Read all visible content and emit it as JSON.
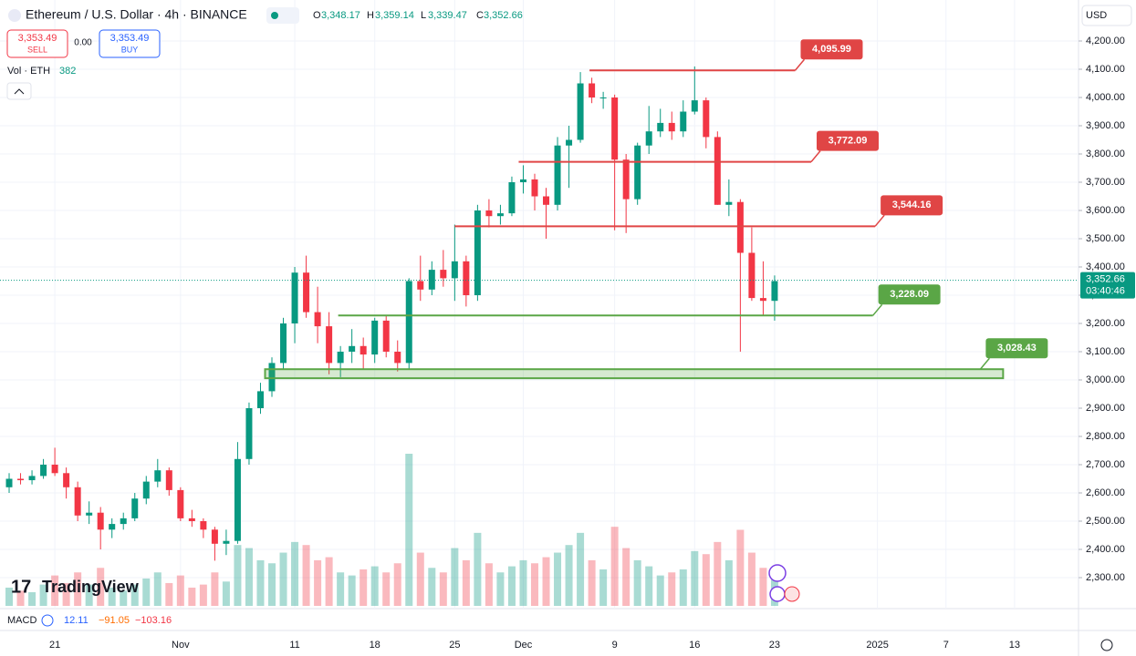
{
  "chart_data": {
    "type": "candlestick",
    "title": "Ethereum / U.S. Dollar · 4h · BINANCE",
    "ohlc_labels": [
      "O",
      "H",
      "L",
      "C"
    ],
    "ohlc_values": [
      "3,348.17",
      "3,359.14",
      "3,339.47",
      "3,352.66"
    ],
    "sell": {
      "price": "3,353.49",
      "label": "SELL"
    },
    "spread": "0.00",
    "buy": {
      "price": "3,353.49",
      "label": "BUY"
    },
    "volume_label": "Vol · ETH",
    "volume_value": "382",
    "macd_label": "MACD",
    "macd_values": [
      "12.11",
      "−91.05",
      "−103.16"
    ],
    "currency": "USD",
    "logo": "TradingView",
    "last_price": {
      "value": 3352.66,
      "label": "3,352.66",
      "countdown": "03:40:46"
    },
    "up_color": "#089981",
    "down_color": "#f23645",
    "xlim": [
      -0.8,
      93.6
    ],
    "xticks": [
      {
        "value": 4,
        "label": "21"
      },
      {
        "value": 15,
        "label": "Nov"
      },
      {
        "value": 25,
        "label": "11"
      },
      {
        "value": 32,
        "label": "18"
      },
      {
        "value": 39,
        "label": "25"
      },
      {
        "value": 45,
        "label": "Dec"
      },
      {
        "value": 53,
        "label": "9"
      },
      {
        "value": 60,
        "label": "16"
      },
      {
        "value": 67,
        "label": "23"
      },
      {
        "value": 76,
        "label": "2025"
      },
      {
        "value": 82,
        "label": "7"
      },
      {
        "value": 88,
        "label": "13"
      }
    ],
    "ylim": [
      2190.3,
      4345.2
    ],
    "yticks": [
      {
        "value": 4200,
        "label": "4,200.00"
      },
      {
        "value": 4100,
        "label": "4,100.00"
      },
      {
        "value": 4000,
        "label": "4,000.00"
      },
      {
        "value": 3900,
        "label": "3,900.00"
      },
      {
        "value": 3800,
        "label": "3,800.00"
      },
      {
        "value": 3700,
        "label": "3,700.00"
      },
      {
        "value": 3600,
        "label": "3,600.00"
      },
      {
        "value": 3500,
        "label": "3,500.00"
      },
      {
        "value": 3400,
        "label": "3,400.00"
      },
      {
        "value": 3300,
        "label": "3,300.00"
      },
      {
        "value": 3200,
        "label": "3,200.00"
      },
      {
        "value": 3100,
        "label": "3,100.00"
      },
      {
        "value": 3000,
        "label": "3,000.00"
      },
      {
        "value": 2900,
        "label": "2,900.00"
      },
      {
        "value": 2800,
        "label": "2,800.00"
      },
      {
        "value": 2700,
        "label": "2,700.00"
      },
      {
        "value": 2600,
        "label": "2,600.00"
      },
      {
        "value": 2500,
        "label": "2,500.00"
      },
      {
        "value": 2400,
        "label": "2,400.00"
      },
      {
        "value": 2300,
        "label": "2,300.00"
      }
    ],
    "grid": true,
    "ohlc": [
      [
        2620,
        2670,
        2600,
        2650
      ],
      [
        2650,
        2670,
        2630,
        2645
      ],
      [
        2645,
        2680,
        2630,
        2660
      ],
      [
        2660,
        2720,
        2650,
        2700
      ],
      [
        2700,
        2760,
        2660,
        2670
      ],
      [
        2670,
        2690,
        2580,
        2620
      ],
      [
        2620,
        2640,
        2500,
        2520
      ],
      [
        2520,
        2570,
        2490,
        2530
      ],
      [
        2530,
        2550,
        2400,
        2470
      ],
      [
        2470,
        2510,
        2440,
        2490
      ],
      [
        2490,
        2530,
        2470,
        2510
      ],
      [
        2510,
        2600,
        2500,
        2580
      ],
      [
        2580,
        2660,
        2560,
        2640
      ],
      [
        2640,
        2720,
        2620,
        2680
      ],
      [
        2680,
        2690,
        2590,
        2610
      ],
      [
        2610,
        2620,
        2500,
        2510
      ],
      [
        2510,
        2540,
        2480,
        2500
      ],
      [
        2500,
        2510,
        2440,
        2470
      ],
      [
        2470,
        2480,
        2360,
        2420
      ],
      [
        2420,
        2470,
        2380,
        2430
      ],
      [
        2430,
        2780,
        2420,
        2720
      ],
      [
        2720,
        2920,
        2700,
        2900
      ],
      [
        2900,
        2990,
        2880,
        2960
      ],
      [
        2960,
        3080,
        2940,
        3060
      ],
      [
        3060,
        3220,
        3040,
        3200
      ],
      [
        3200,
        3400,
        3130,
        3380
      ],
      [
        3380,
        3440,
        3220,
        3240
      ],
      [
        3240,
        3330,
        3130,
        3190
      ],
      [
        3190,
        3240,
        3020,
        3060
      ],
      [
        3060,
        3120,
        3010,
        3100
      ],
      [
        3100,
        3180,
        3060,
        3120
      ],
      [
        3120,
        3150,
        3040,
        3090
      ],
      [
        3090,
        3220,
        3060,
        3210
      ],
      [
        3210,
        3230,
        3080,
        3100
      ],
      [
        3100,
        3140,
        3030,
        3060
      ],
      [
        3060,
        3360,
        3040,
        3350
      ],
      [
        3350,
        3440,
        3280,
        3320
      ],
      [
        3320,
        3420,
        3300,
        3390
      ],
      [
        3390,
        3460,
        3330,
        3360
      ],
      [
        3360,
        3550,
        3280,
        3420
      ],
      [
        3420,
        3440,
        3260,
        3300
      ],
      [
        3300,
        3620,
        3280,
        3600
      ],
      [
        3600,
        3640,
        3540,
        3580
      ],
      [
        3580,
        3620,
        3550,
        3590
      ],
      [
        3590,
        3720,
        3580,
        3700
      ],
      [
        3700,
        3760,
        3660,
        3710
      ],
      [
        3710,
        3730,
        3600,
        3650
      ],
      [
        3650,
        3680,
        3500,
        3620
      ],
      [
        3620,
        3860,
        3600,
        3830
      ],
      [
        3830,
        3900,
        3680,
        3850
      ],
      [
        3850,
        4090,
        3840,
        4050
      ],
      [
        4050,
        4070,
        3980,
        4000
      ],
      [
        4000,
        4020,
        3960,
        4000
      ],
      [
        4000,
        4010,
        3530,
        3780
      ],
      [
        3780,
        3800,
        3520,
        3640
      ],
      [
        3640,
        3840,
        3620,
        3830
      ],
      [
        3830,
        3970,
        3800,
        3880
      ],
      [
        3880,
        3960,
        3860,
        3910
      ],
      [
        3910,
        3950,
        3850,
        3880
      ],
      [
        3880,
        3990,
        3860,
        3950
      ],
      [
        3950,
        4110,
        3940,
        3990
      ],
      [
        3990,
        4000,
        3820,
        3860
      ],
      [
        3860,
        3880,
        3620,
        3620
      ],
      [
        3620,
        3710,
        3580,
        3630
      ],
      [
        3630,
        3640,
        3100,
        3450
      ],
      [
        3450,
        3540,
        3280,
        3290
      ],
      [
        3290,
        3420,
        3230,
        3280
      ],
      [
        3280,
        3370,
        3210,
        3350
      ]
    ],
    "vlim": [
      0,
      100
    ],
    "volume": [
      12,
      10,
      9,
      14,
      20,
      15,
      22,
      14,
      25,
      12,
      10,
      14,
      18,
      22,
      15,
      20,
      12,
      14,
      22,
      16,
      40,
      38,
      30,
      28,
      35,
      42,
      40,
      30,
      32,
      22,
      20,
      24,
      26,
      22,
      28,
      100,
      35,
      25,
      22,
      38,
      30,
      48,
      28,
      22,
      26,
      30,
      28,
      32,
      35,
      40,
      48,
      30,
      24,
      52,
      38,
      30,
      26,
      20,
      22,
      24,
      36,
      34,
      42,
      30,
      50,
      35,
      25,
      20
    ],
    "levels": [
      {
        "value": 4095.99,
        "label": "4,095.99",
        "from": 50.8,
        "to": 68.8,
        "color": "#e04545"
      },
      {
        "value": 3772.09,
        "label": "3,772.09",
        "from": 44.6,
        "to": 70.2,
        "color": "#e04545"
      },
      {
        "value": 3544.16,
        "label": "3,544.16",
        "from": 39,
        "to": 75.8,
        "color": "#e04545"
      },
      {
        "value": 3228.09,
        "label": "3,228.09",
        "from": 28.8,
        "to": 75.6,
        "color": "#5aa646"
      }
    ],
    "zone": {
      "low": 3006,
      "high": 3038,
      "label": "3,028.43",
      "from": 22.4,
      "to": 87,
      "color": "#5aa646"
    }
  }
}
